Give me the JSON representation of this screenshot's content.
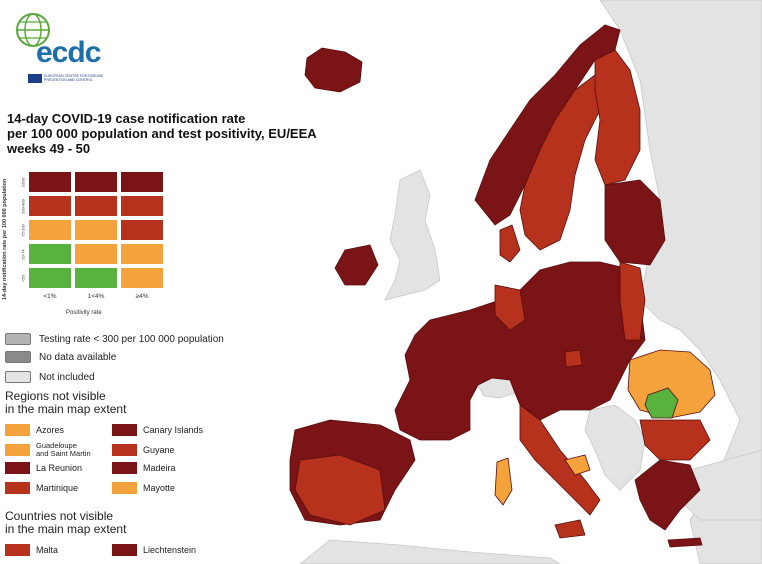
{
  "logo": {
    "name": "ecdc",
    "subtitle": "EUROPEAN CENTRE FOR DISEASE PREVENTION AND CONTROL"
  },
  "title": {
    "line1": "14-day COVID-19 case notification rate",
    "line2": "per 100 000 population and test positivity, EU/EEA",
    "line3": "weeks 49 - 50"
  },
  "matrix": {
    "y_axis_label": "14-day notification rate per 100 000 population",
    "x_axis_label": "Positivity rate",
    "columns": [
      "<1%",
      "1<4%",
      "≥4%"
    ],
    "rows": [
      "≥500",
      "200-499",
      "75-200",
      "50-74",
      "<50"
    ],
    "colors": [
      [
        "#7b1416",
        "#7b1416",
        "#7b1416"
      ],
      [
        "#b7321c",
        "#b7321c",
        "#b7321c"
      ],
      [
        "#f4a23b",
        "#f4a23b",
        "#b7321c"
      ],
      [
        "#58b23d",
        "#f4a23b",
        "#f4a23b"
      ],
      [
        "#58b23d",
        "#58b23d",
        "#f4a23b"
      ]
    ]
  },
  "legend_other": [
    {
      "label": "Testing rate < 300 per 100 000 population",
      "color": "#b4b4b4"
    },
    {
      "label": "No data available",
      "color": "#8a8a8a"
    },
    {
      "label": "Not included",
      "color": "#e3e3e3"
    }
  ],
  "regions_heading": {
    "line1": "Regions not visible",
    "line2": "in the main map extent"
  },
  "regions": [
    {
      "label": "Azores",
      "color": "#f4a23b"
    },
    {
      "label": "Canary Islands",
      "color": "#7b1416"
    },
    {
      "label": "Guadeloupe",
      "label2": "and Saint Martin",
      "color": "#f4a23b"
    },
    {
      "label": "Guyane",
      "color": "#b7321c"
    },
    {
      "label": "La Reunion",
      "color": "#7b1416"
    },
    {
      "label": "Madeira",
      "color": "#7b1416"
    },
    {
      "label": "Martinique",
      "color": "#b7321c"
    },
    {
      "label": "Mayotte",
      "color": "#f4a23b"
    }
  ],
  "countries_heading": {
    "line1": "Countries not visible",
    "line2": "in the main map extent"
  },
  "countries": [
    {
      "label": "Malta",
      "color": "#b7321c"
    },
    {
      "label": "Liechtenstein",
      "color": "#7b1416"
    }
  ],
  "map_colors": {
    "sea": "#ffffff",
    "not_included": "#e3e3e3",
    "dark_red": "#7b1416",
    "red": "#b7321c",
    "orange": "#f4a23b",
    "green": "#58b23d",
    "border": "#5a0c0e"
  }
}
